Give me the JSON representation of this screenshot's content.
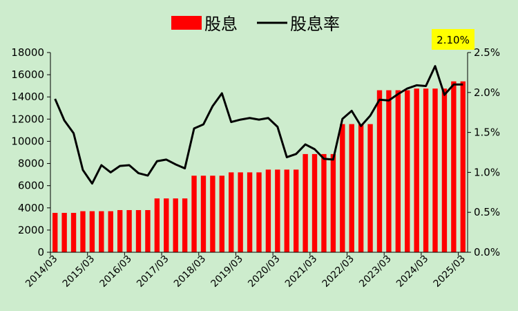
{
  "chart_data": {
    "type": "bar+line",
    "legend_position": "top-center",
    "grid": false,
    "series": [
      {
        "name": "股息",
        "kind": "bar",
        "axis": "left",
        "color": "#ff0000",
        "values": [
          3550,
          3550,
          3550,
          3700,
          3700,
          3700,
          3700,
          3800,
          3800,
          3800,
          3800,
          4850,
          4850,
          4850,
          4850,
          6900,
          6900,
          6900,
          6900,
          7200,
          7200,
          7200,
          7200,
          7450,
          7450,
          7450,
          7450,
          8850,
          8850,
          8850,
          8850,
          11550,
          11550,
          11550,
          11550,
          14600,
          14600,
          14600,
          14600,
          14750,
          14750,
          14750,
          14750,
          15400,
          15400
        ]
      },
      {
        "name": "股息率",
        "kind": "line",
        "axis": "right",
        "color": "#000000",
        "values": [
          1.92,
          1.65,
          1.49,
          1.03,
          0.86,
          1.09,
          1.0,
          1.08,
          1.09,
          0.99,
          0.96,
          1.14,
          1.16,
          1.1,
          1.05,
          1.55,
          1.6,
          1.83,
          1.99,
          1.63,
          1.66,
          1.68,
          1.66,
          1.68,
          1.57,
          1.19,
          1.23,
          1.35,
          1.29,
          1.17,
          1.16,
          1.67,
          1.77,
          1.58,
          1.71,
          1.91,
          1.9,
          1.98,
          2.05,
          2.09,
          2.08,
          2.33,
          1.97,
          2.1,
          2.1
        ]
      }
    ],
    "x_tick_labels": [
      "2014/03",
      "2015/03",
      "2016/03",
      "2017/03",
      "2018/03",
      "2019/03",
      "2020/03",
      "2021/03",
      "2022/03",
      "2023/03",
      "2024/03",
      "2025/03"
    ],
    "y_left": {
      "min": 0,
      "max": 18000,
      "step": 2000,
      "ticks": [
        "0",
        "2000",
        "4000",
        "6000",
        "8000",
        "10000",
        "12000",
        "14000",
        "16000",
        "18000"
      ]
    },
    "y_right": {
      "min": 0,
      "max": 2.5,
      "step": 0.5,
      "ticks": [
        "0.0%",
        "0.5%",
        "1.0%",
        "1.5%",
        "2.0%",
        "2.5%"
      ]
    },
    "callout": {
      "text": "2.10%",
      "background": "#ffff00"
    },
    "background": "#cdeccd"
  }
}
